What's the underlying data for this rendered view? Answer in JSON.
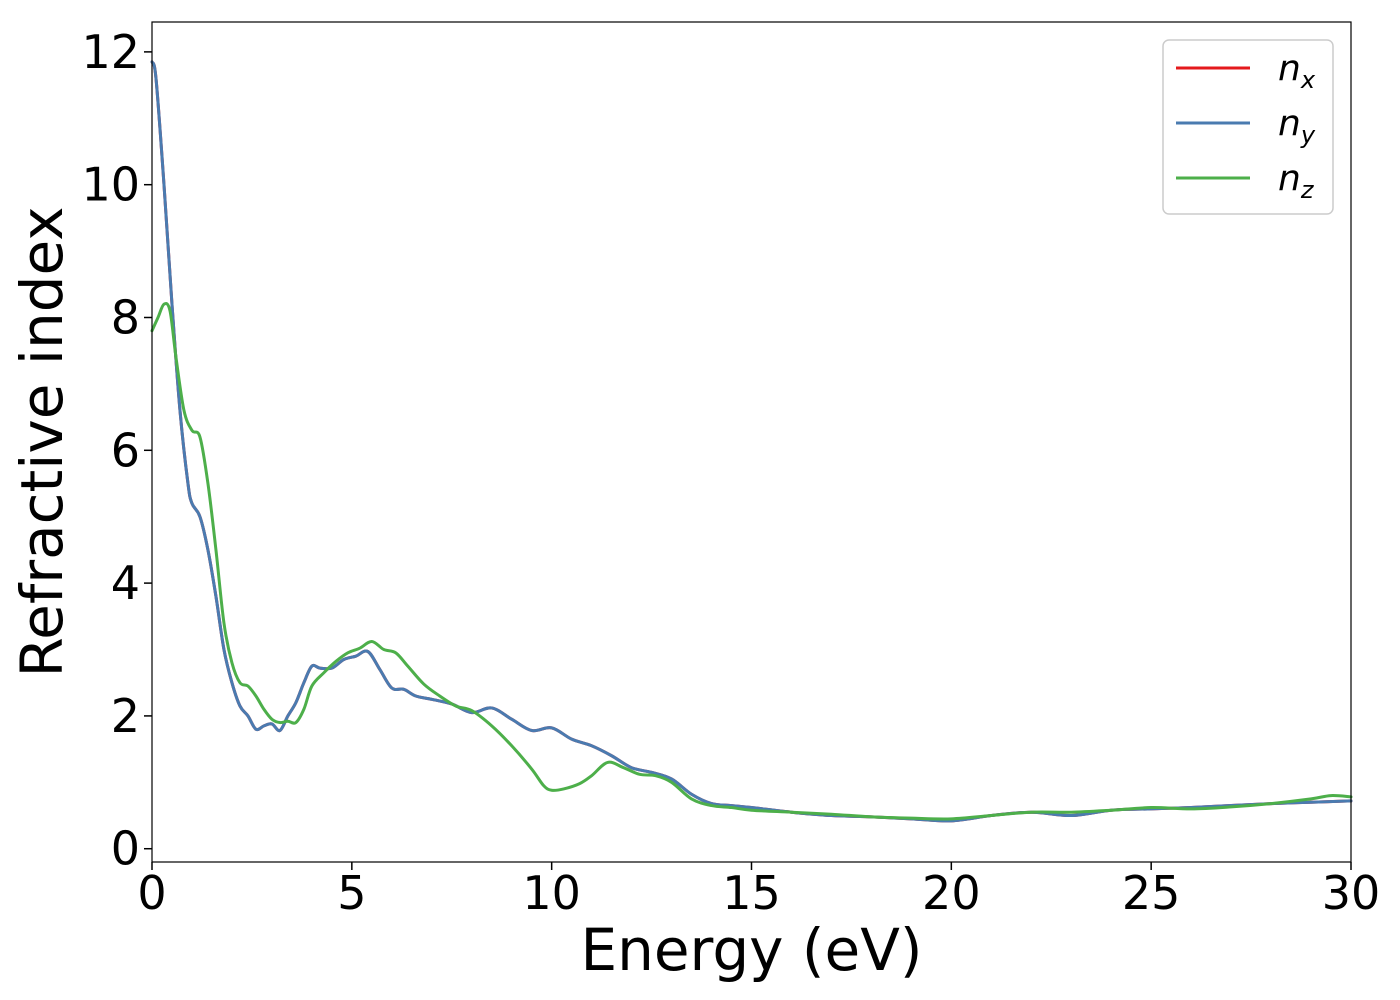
{
  "chart_data": {
    "type": "line",
    "xlabel": "Energy (eV)",
    "ylabel": "Refractive index",
    "xlim": [
      0,
      30
    ],
    "ylim": [
      -0.2,
      12.45
    ],
    "xticks": [
      0,
      5,
      10,
      15,
      20,
      25,
      30
    ],
    "xtick_labels": [
      "0",
      "5",
      "10",
      "15",
      "20",
      "25",
      "30"
    ],
    "yticks": [
      0,
      2,
      4,
      6,
      8,
      10,
      12
    ],
    "ytick_labels": [
      "0",
      "2",
      "4",
      "6",
      "8",
      "10",
      "12"
    ],
    "grid": false,
    "legend_position": "top-right",
    "series": [
      {
        "name": "n",
        "subscript": "x",
        "color": "#e41a1c",
        "x": [
          0,
          0.1,
          0.3,
          0.5,
          0.7,
          0.9,
          1.0,
          1.2,
          1.4,
          1.6,
          1.8,
          2.0,
          2.2,
          2.4,
          2.6,
          2.8,
          3.0,
          3.2,
          3.4,
          3.6,
          3.8,
          4.0,
          4.2,
          4.5,
          4.8,
          5.1,
          5.4,
          5.7,
          6.0,
          6.3,
          6.6,
          7.0,
          7.5,
          8.0,
          8.5,
          9.0,
          9.5,
          10.0,
          10.5,
          11.0,
          11.5,
          12.0,
          12.5,
          13.0,
          13.5,
          14.0,
          14.5,
          15.0,
          16.0,
          17.0,
          18.0,
          19.0,
          20.0,
          21.0,
          22.0,
          23.0,
          24.0,
          25.0,
          26.0,
          27.0,
          28.0,
          29.0,
          30.0
        ],
        "values": [
          11.85,
          11.6,
          10.0,
          8.2,
          6.6,
          5.5,
          5.2,
          5.0,
          4.5,
          3.8,
          3.0,
          2.5,
          2.15,
          2.0,
          1.8,
          1.85,
          1.88,
          1.78,
          2.0,
          2.2,
          2.5,
          2.75,
          2.72,
          2.72,
          2.85,
          2.9,
          2.97,
          2.7,
          2.42,
          2.4,
          2.3,
          2.25,
          2.18,
          2.05,
          2.12,
          1.95,
          1.78,
          1.82,
          1.65,
          1.55,
          1.4,
          1.22,
          1.15,
          1.05,
          0.82,
          0.68,
          0.65,
          0.62,
          0.55,
          0.5,
          0.48,
          0.45,
          0.42,
          0.5,
          0.55,
          0.5,
          0.58,
          0.6,
          0.62,
          0.65,
          0.68,
          0.7,
          0.72
        ]
      },
      {
        "name": "n",
        "subscript": "y",
        "color": "#4a7bb0",
        "x": [
          0,
          0.1,
          0.3,
          0.5,
          0.7,
          0.9,
          1.0,
          1.2,
          1.4,
          1.6,
          1.8,
          2.0,
          2.2,
          2.4,
          2.6,
          2.8,
          3.0,
          3.2,
          3.4,
          3.6,
          3.8,
          4.0,
          4.2,
          4.5,
          4.8,
          5.1,
          5.4,
          5.7,
          6.0,
          6.3,
          6.6,
          7.0,
          7.5,
          8.0,
          8.5,
          9.0,
          9.5,
          10.0,
          10.5,
          11.0,
          11.5,
          12.0,
          12.5,
          13.0,
          13.5,
          14.0,
          14.5,
          15.0,
          16.0,
          17.0,
          18.0,
          19.0,
          20.0,
          21.0,
          22.0,
          23.0,
          24.0,
          25.0,
          26.0,
          27.0,
          28.0,
          29.0,
          30.0
        ],
        "values": [
          11.85,
          11.6,
          10.0,
          8.2,
          6.6,
          5.5,
          5.2,
          5.0,
          4.5,
          3.8,
          3.0,
          2.5,
          2.15,
          2.0,
          1.8,
          1.85,
          1.88,
          1.78,
          2.0,
          2.2,
          2.5,
          2.75,
          2.72,
          2.72,
          2.85,
          2.9,
          2.97,
          2.7,
          2.42,
          2.4,
          2.3,
          2.25,
          2.18,
          2.05,
          2.12,
          1.95,
          1.78,
          1.82,
          1.65,
          1.55,
          1.4,
          1.22,
          1.15,
          1.05,
          0.82,
          0.68,
          0.65,
          0.62,
          0.55,
          0.5,
          0.48,
          0.45,
          0.42,
          0.5,
          0.55,
          0.5,
          0.58,
          0.6,
          0.62,
          0.65,
          0.68,
          0.7,
          0.72
        ]
      },
      {
        "name": "n",
        "subscript": "z",
        "color": "#4daf4a",
        "x": [
          0,
          0.15,
          0.3,
          0.45,
          0.6,
          0.8,
          1.0,
          1.2,
          1.4,
          1.6,
          1.8,
          2.0,
          2.2,
          2.4,
          2.6,
          2.8,
          3.0,
          3.2,
          3.4,
          3.6,
          3.8,
          4.0,
          4.3,
          4.6,
          4.9,
          5.2,
          5.5,
          5.8,
          6.1,
          6.4,
          6.8,
          7.2,
          7.6,
          8.0,
          8.5,
          9.0,
          9.5,
          9.8,
          10.0,
          10.3,
          10.7,
          11.0,
          11.4,
          11.8,
          12.2,
          12.6,
          13.0,
          13.5,
          14.0,
          14.5,
          15.0,
          16.0,
          17.0,
          18.0,
          19.0,
          20.0,
          21.0,
          22.0,
          23.0,
          24.0,
          25.0,
          26.0,
          27.0,
          28.0,
          29.0,
          29.5,
          30.0
        ],
        "values": [
          7.8,
          8.0,
          8.2,
          8.1,
          7.4,
          6.6,
          6.3,
          6.2,
          5.5,
          4.5,
          3.4,
          2.8,
          2.5,
          2.45,
          2.3,
          2.1,
          1.95,
          1.9,
          1.92,
          1.9,
          2.1,
          2.45,
          2.65,
          2.82,
          2.95,
          3.02,
          3.12,
          3.0,
          2.95,
          2.75,
          2.48,
          2.3,
          2.15,
          2.08,
          1.85,
          1.55,
          1.2,
          0.95,
          0.88,
          0.9,
          0.98,
          1.1,
          1.3,
          1.22,
          1.12,
          1.1,
          1.0,
          0.75,
          0.65,
          0.62,
          0.58,
          0.55,
          0.52,
          0.48,
          0.46,
          0.45,
          0.5,
          0.55,
          0.55,
          0.58,
          0.62,
          0.6,
          0.63,
          0.68,
          0.75,
          0.8,
          0.78
        ]
      }
    ]
  }
}
